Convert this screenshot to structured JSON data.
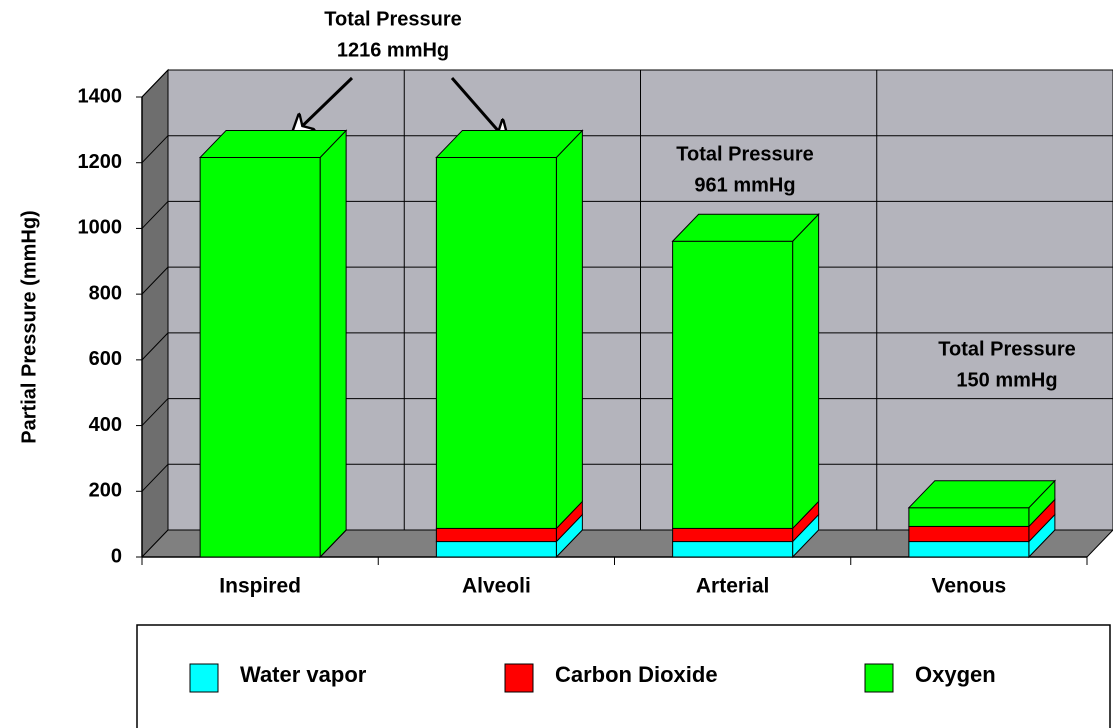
{
  "chart_data": {
    "type": "bar3d_stacked",
    "y_label": "Partial Pressure (mmHg)",
    "categories": [
      "Inspired",
      "Alveoli",
      "Arterial",
      "Venous"
    ],
    "series": [
      {
        "name": "Water vapor",
        "color": "#00ffff",
        "values": [
          0,
          47,
          47,
          47
        ]
      },
      {
        "name": "Carbon Dioxide",
        "color": "#ff0000",
        "values": [
          0,
          40,
          40,
          46
        ]
      },
      {
        "name": "Oxygen",
        "color": "#00ff00",
        "values": [
          1216,
          1129,
          874,
          57
        ]
      }
    ],
    "ylim": [
      0,
      1400
    ],
    "yticks": [
      0,
      200,
      400,
      600,
      800,
      1000,
      1200,
      1400
    ],
    "grid": true,
    "annotations": [
      {
        "lines": [
          "Total Pressure",
          "1216 mmHg"
        ]
      },
      {
        "lines": [
          "Total Pressure",
          "961 mmHg"
        ]
      },
      {
        "lines": [
          "Total Pressure",
          "150 mmHg"
        ]
      }
    ],
    "legend": "bottom"
  }
}
